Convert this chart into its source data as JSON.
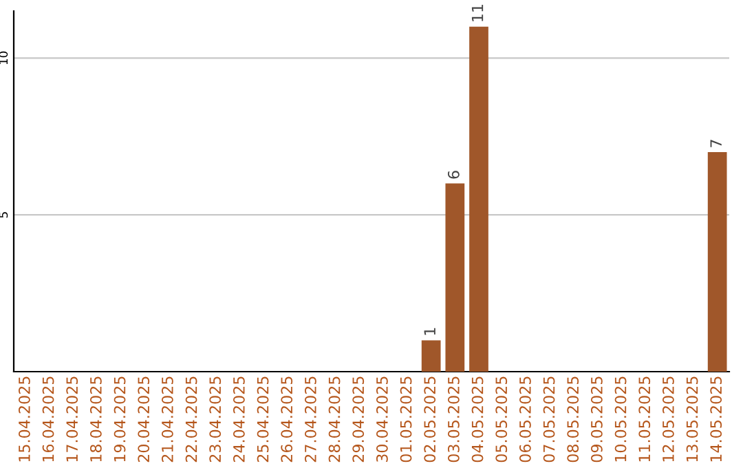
{
  "chart_data": {
    "type": "bar",
    "categories": [
      "15.04.2025",
      "16.04.2025",
      "17.04.2025",
      "18.04.2025",
      "19.04.2025",
      "20.04.2025",
      "21.04.2025",
      "22.04.2025",
      "23.04.2025",
      "24.04.2025",
      "25.04.2025",
      "26.04.2025",
      "27.04.2025",
      "28.04.2025",
      "29.04.2025",
      "30.04.2025",
      "01.05.2025",
      "02.05.2025",
      "03.05.2025",
      "04.05.2025",
      "05.05.2025",
      "06.05.2025",
      "07.05.2025",
      "08.05.2025",
      "09.05.2025",
      "10.05.2025",
      "11.05.2025",
      "12.05.2025",
      "13.05.2025",
      "14.05.2025"
    ],
    "value_labels": [
      null,
      null,
      null,
      null,
      null,
      null,
      null,
      null,
      null,
      null,
      null,
      null,
      null,
      null,
      null,
      null,
      null,
      "1",
      "6",
      "11",
      null,
      null,
      null,
      null,
      null,
      null,
      null,
      null,
      null,
      "7"
    ],
    "values": [
      0,
      0,
      0,
      0,
      0,
      0,
      0,
      0,
      0,
      0,
      0,
      0,
      0,
      0,
      0,
      0,
      0,
      1,
      6,
      11,
      0,
      0,
      0,
      0,
      0,
      0,
      0,
      0,
      0,
      7
    ],
    "color": "#a0572a",
    "ylim": [
      0,
      11.5
    ],
    "yticks": [
      5,
      10
    ],
    "grid": "y"
  }
}
